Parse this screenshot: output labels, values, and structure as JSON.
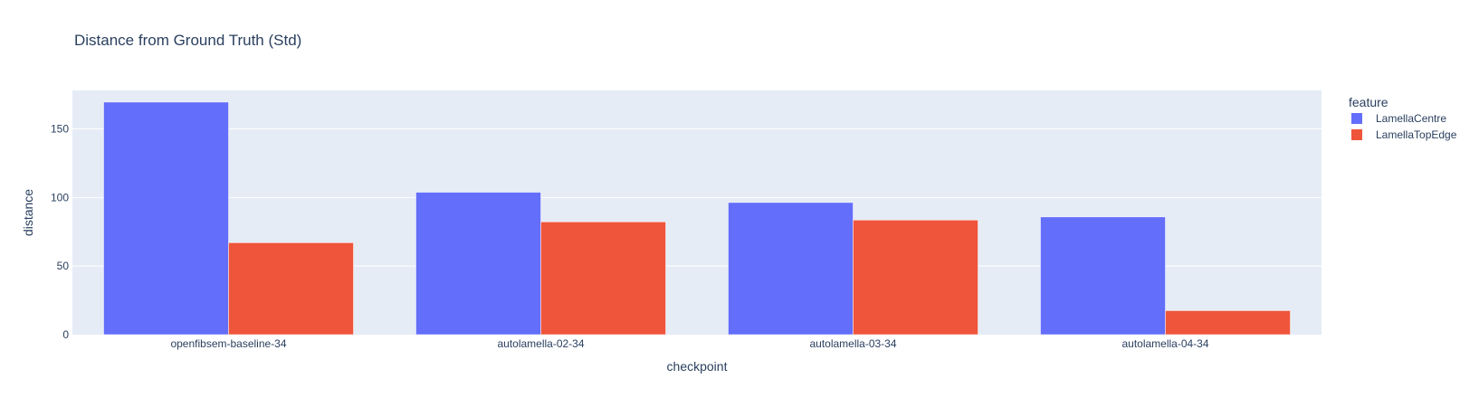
{
  "chart_data": {
    "type": "bar",
    "title": "Distance from Ground Truth (Std)",
    "xlabel": "checkpoint",
    "ylabel": "distance",
    "categories": [
      "openfibsem-baseline-34",
      "autolamella-02-34",
      "autolamella-03-34",
      "autolamella-04-34"
    ],
    "series": [
      {
        "name": "LamellaCentre",
        "color": "#636efa",
        "values": [
          169.5,
          103.8,
          96.3,
          85.8
        ]
      },
      {
        "name": "LamellaTopEdge",
        "color": "#ef553b",
        "values": [
          67.0,
          82.2,
          83.5,
          17.5
        ]
      }
    ],
    "ylim": [
      0,
      178
    ],
    "yticks": [
      0,
      50,
      100,
      150
    ],
    "grid": true,
    "legend": {
      "title": "feature",
      "position": "top-right"
    },
    "colors": {
      "plot_bg": "#e5ecf6",
      "grid": "#ffffff",
      "text": "#2a3f5f"
    }
  }
}
